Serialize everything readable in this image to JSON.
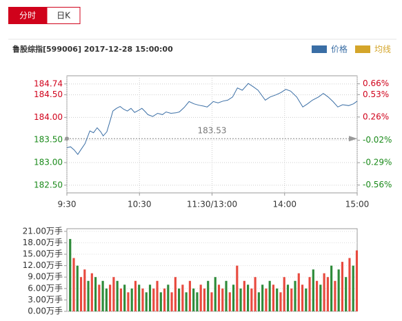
{
  "tabs": [
    {
      "label": "分时",
      "active": true
    },
    {
      "label": "日K",
      "active": false
    }
  ],
  "chart_data": [
    {
      "type": "line",
      "title": "鲁股综指[599006] 2017-12-28 15:00:00",
      "series": [
        {
          "name": "价格",
          "color": "#3a6ea5",
          "x": [
            0,
            3,
            6,
            9,
            12,
            15,
            19,
            22,
            25,
            28,
            30,
            33,
            36,
            38,
            41,
            44,
            47,
            50,
            53,
            56,
            59,
            62,
            65,
            67,
            71,
            75,
            79,
            82,
            86,
            90,
            93,
            97,
            101,
            105,
            109,
            113,
            116,
            119,
            121,
            125,
            129,
            133,
            137,
            141,
            145,
            150,
            154,
            158,
            164,
            168,
            173,
            177,
            181,
            185,
            190,
            195,
            199,
            203,
            208,
            212,
            216,
            220,
            224,
            228,
            233,
            237,
            240
          ],
          "values": [
            183.33,
            183.35,
            183.28,
            183.18,
            183.3,
            183.42,
            183.7,
            183.66,
            183.77,
            183.68,
            183.59,
            183.68,
            183.95,
            184.14,
            184.2,
            184.24,
            184.18,
            184.14,
            184.2,
            184.11,
            184.15,
            184.2,
            184.12,
            184.06,
            184.02,
            184.09,
            184.06,
            184.12,
            184.09,
            184.1,
            184.12,
            184.22,
            184.35,
            184.3,
            184.27,
            184.25,
            184.23,
            184.3,
            184.35,
            184.32,
            184.36,
            184.38,
            184.45,
            184.65,
            184.6,
            184.75,
            184.68,
            184.6,
            184.38,
            184.45,
            184.5,
            184.55,
            184.62,
            184.58,
            184.45,
            184.23,
            184.3,
            184.38,
            184.45,
            184.53,
            184.45,
            184.35,
            184.23,
            184.28,
            184.26,
            184.3,
            184.36
          ]
        },
        {
          "name": "均线",
          "color": "#d4a52a"
        }
      ],
      "ref_price": 183.53,
      "xlim": [
        0,
        240
      ],
      "xticks": [
        {
          "value": 0,
          "label": "9:30"
        },
        {
          "value": 60,
          "label": "10:30"
        },
        {
          "value": 120,
          "label": "11:30/13:00"
        },
        {
          "value": 180,
          "label": "14:00"
        },
        {
          "value": 240,
          "label": "15:00"
        }
      ],
      "ylim": [
        182.33,
        184.92
      ],
      "yticks": [
        {
          "value": 184.74,
          "label": "184.74"
        },
        {
          "value": 184.5,
          "label": "184.50"
        },
        {
          "value": 184,
          "label": "184.00"
        },
        {
          "value": 183.5,
          "label": "183.50"
        },
        {
          "value": 183,
          "label": "183.00"
        },
        {
          "value": 182.5,
          "label": "182.50"
        }
      ],
      "y2lim": [
        -0.654,
        0.757
      ],
      "y2ticks": [
        {
          "value": 0.66,
          "label": "0.66%"
        },
        {
          "value": 0.53,
          "label": "0.53%"
        },
        {
          "value": 0.26,
          "label": "0.26%"
        },
        {
          "value": -0.02,
          "label": "-0.02%"
        },
        {
          "value": -0.29,
          "label": "-0.29%"
        },
        {
          "value": -0.56,
          "label": "-0.56%"
        }
      ],
      "up_color": "#d0021b",
      "down_color": "#1a8a1a",
      "grid": true
    },
    {
      "type": "bar",
      "x": [
        0,
        3,
        6,
        9,
        12,
        15,
        18,
        21,
        24,
        27,
        30,
        33,
        36,
        39,
        42,
        45,
        48,
        51,
        54,
        57,
        60,
        63,
        66,
        69,
        72,
        75,
        78,
        81,
        84,
        87,
        90,
        93,
        96,
        99,
        102,
        105,
        108,
        111,
        114,
        117,
        120,
        123,
        126,
        129,
        132,
        135,
        138,
        141,
        144,
        147,
        150,
        153,
        156,
        159,
        162,
        165,
        168,
        171,
        174,
        177,
        180,
        183,
        186,
        189,
        192,
        195,
        198,
        201,
        204,
        207,
        210,
        213,
        216,
        219,
        222,
        225,
        228,
        231,
        234,
        237
      ],
      "values": [
        19,
        14,
        12,
        9,
        11,
        8,
        10,
        9,
        7,
        8,
        6,
        7,
        9,
        8,
        6,
        7,
        5,
        6,
        8,
        7,
        6,
        5,
        7,
        6,
        8,
        5,
        6,
        7,
        5,
        9,
        6,
        7,
        5,
        8,
        6,
        5,
        7,
        6,
        8,
        5,
        9,
        7,
        6,
        8,
        5,
        7,
        12,
        6,
        8,
        7,
        6,
        9,
        5,
        7,
        6,
        8,
        7,
        6,
        5,
        9,
        7,
        6,
        8,
        10,
        7,
        6,
        9,
        11,
        8,
        7,
        10,
        9,
        12,
        8,
        11,
        13,
        9,
        14,
        12,
        16
      ],
      "directions": [
        "down",
        "up",
        "down",
        "up",
        "up",
        "down",
        "up",
        "down",
        "up",
        "down",
        "down",
        "up",
        "up",
        "down",
        "up",
        "down",
        "up",
        "down",
        "up",
        "down",
        "up",
        "down",
        "down",
        "up",
        "up",
        "down",
        "up",
        "down",
        "up",
        "up",
        "down",
        "up",
        "down",
        "up",
        "down",
        "down",
        "up",
        "up",
        "down",
        "up",
        "down",
        "up",
        "up",
        "down",
        "up",
        "down",
        "up",
        "down",
        "up",
        "down",
        "up",
        "up",
        "down",
        "down",
        "up",
        "down",
        "up",
        "down",
        "up",
        "up",
        "down",
        "up",
        "down",
        "up",
        "up",
        "down",
        "up",
        "down",
        "up",
        "down",
        "up",
        "up",
        "down",
        "up",
        "down",
        "up",
        "down",
        "up",
        "down",
        "up"
      ],
      "up_color": "#e84a3f",
      "down_color": "#2e8b3a",
      "xlim": [
        0,
        240
      ],
      "ylim": [
        0,
        21.7
      ],
      "yticks": [
        {
          "value": 21,
          "label": "21.00万手"
        },
        {
          "value": 18,
          "label": "18.00万手"
        },
        {
          "value": 15,
          "label": "15.00万手"
        },
        {
          "value": 12,
          "label": "12.00万手"
        },
        {
          "value": 9,
          "label": "9.00万手"
        },
        {
          "value": 6,
          "label": "6.00万手"
        },
        {
          "value": 3,
          "label": "3.00万手"
        },
        {
          "value": 0,
          "label": "0.00万手"
        }
      ],
      "grid": true
    }
  ]
}
